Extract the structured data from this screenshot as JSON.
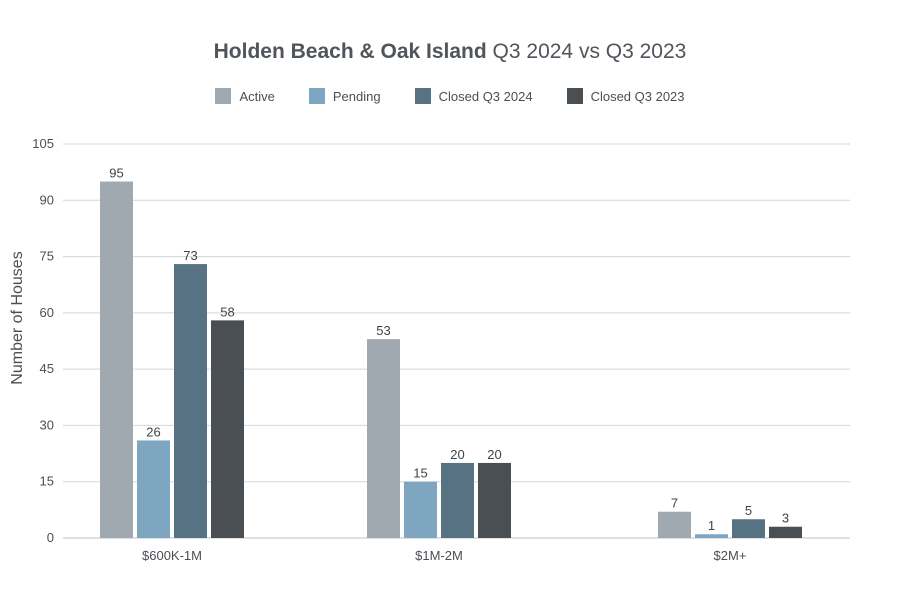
{
  "chart_data": {
    "type": "bar",
    "title_bold": "Holden Beach & Oak Island",
    "title_light": "Q3 2024 vs Q3 2023",
    "ylabel": "Number of Houses",
    "xlabel": "",
    "ylim": [
      0,
      105
    ],
    "yticks": [
      "0",
      "15",
      "30",
      "45",
      "60",
      "75",
      "90",
      "105"
    ],
    "ytick_values": [
      0,
      15,
      30,
      45,
      60,
      75,
      90,
      105
    ],
    "grid": true,
    "legend_position": "top",
    "categories": [
      "$600K-1M",
      "$1M-2M",
      "$2M+"
    ],
    "series": [
      {
        "name": "Active",
        "color": "#a0a8b0",
        "values": [
          95,
          53,
          7
        ],
        "labels": [
          "95",
          "53",
          "7"
        ]
      },
      {
        "name": "Pending",
        "color": "#7ea6c0",
        "values": [
          26,
          15,
          1
        ],
        "labels": [
          "26",
          "15",
          "1"
        ]
      },
      {
        "name": "Closed Q3 2024",
        "color": "#577282",
        "values": [
          73,
          20,
          5
        ],
        "labels": [
          "73",
          "20",
          "5"
        ]
      },
      {
        "name": "Closed Q3 2023",
        "color": "#4a4f54",
        "values": [
          58,
          20,
          3
        ],
        "labels": [
          "58",
          "20",
          "3"
        ]
      }
    ]
  }
}
